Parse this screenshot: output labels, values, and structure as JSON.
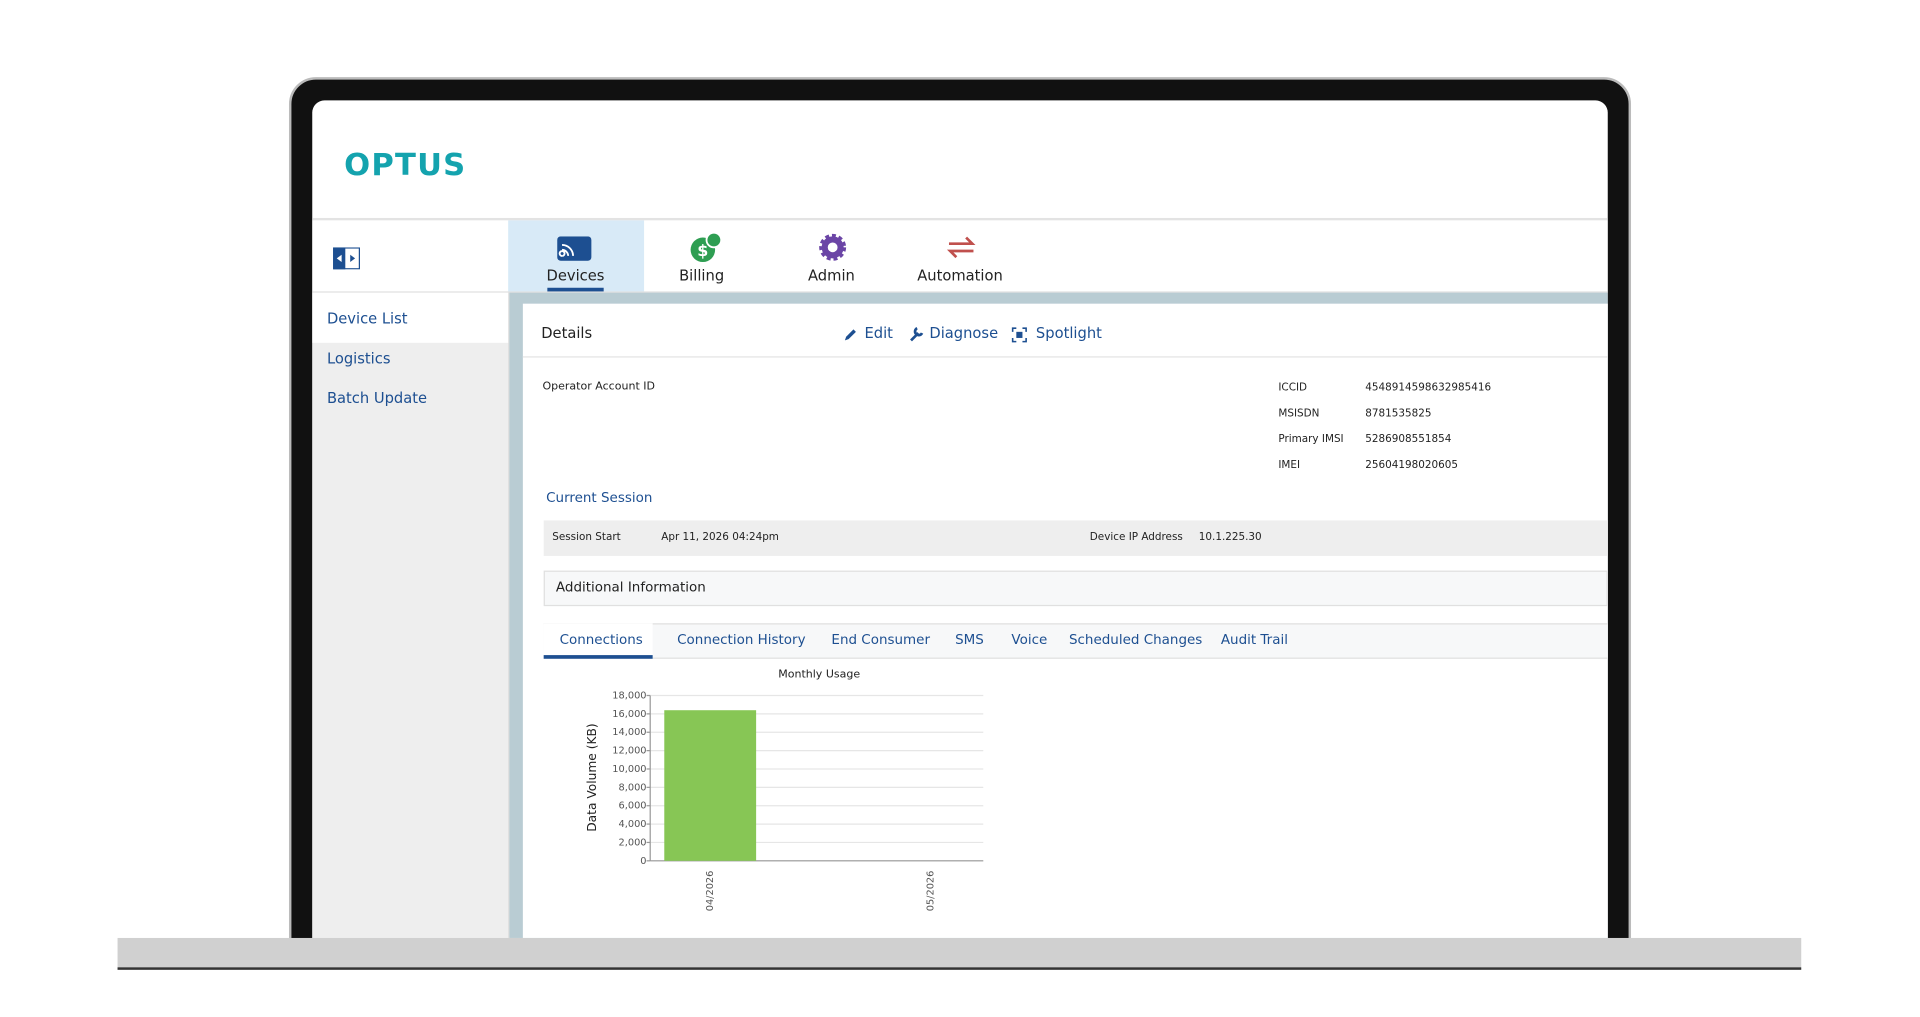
{
  "header": {
    "logo": "OPTUS"
  },
  "nav": {
    "tabs": [
      "Devices",
      "Billing",
      "Admin",
      "Automation"
    ]
  },
  "sidebar": {
    "items": [
      "Device List",
      "Logistics",
      "Batch Update"
    ]
  },
  "details": {
    "title": "Details",
    "actions": [
      "Edit",
      "Diagnose",
      "Spotlight"
    ],
    "account_label": "Operator Account ID",
    "fields": [
      [
        "ICCID",
        "4548914598632985416"
      ],
      [
        "MSISDN",
        "8781535825"
      ],
      [
        "Primary IMSI",
        "5286908551854"
      ],
      [
        "IMEI",
        "25604198020605"
      ]
    ],
    "session_title": "Current Session",
    "session": [
      [
        "Session Start",
        "Apr 11, 2026 04:24pm"
      ],
      [
        "Device IP Address",
        "10.1.225.30"
      ]
    ],
    "additional": "Additional Information",
    "tabs": [
      "Connections",
      "Connection History",
      "End Consumer",
      "SMS",
      "Voice",
      "Scheduled Changes",
      "Audit Trail"
    ]
  },
  "chart_data": {
    "type": "bar",
    "title": "Monthly Usage",
    "y_label": "Data Volume (KB)",
    "categories": [
      "04/2026",
      "05/2026"
    ],
    "values": [
      16400,
      0
    ],
    "color": "#87c655",
    "ylim": [
      0,
      18000
    ],
    "yticks": [
      0,
      {
        "value": 2000,
        "label": "2,000"
      },
      {
        "value": 4000,
        "label": "4,000"
      },
      {
        "value": 6000,
        "label": "6,000"
      },
      {
        "value": 8000,
        "label": "8,000"
      },
      {
        "value": 10000,
        "label": "10,000"
      },
      {
        "value": 12000,
        "label": "12,000"
      },
      {
        "value": 14000,
        "label": "14,000"
      },
      {
        "value": 16000,
        "label": "16,000"
      },
      {
        "value": 18000,
        "label": "18,000"
      }
    ],
    "grid": true
  }
}
